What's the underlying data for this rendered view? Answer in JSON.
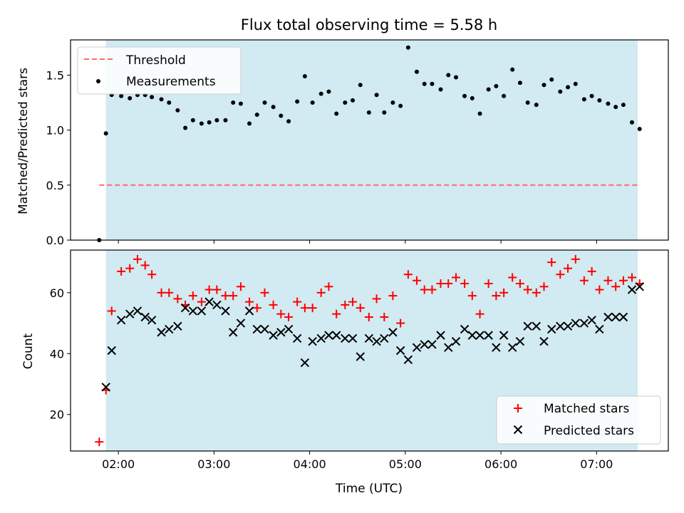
{
  "title": "Flux total observing time = 5.58 h",
  "colors": {
    "shade": "#add8e6",
    "threshold": "#ff6b6b",
    "measurements": "#000000",
    "matched": "#ff0000",
    "predicted": "#000000"
  },
  "chart_data": [
    {
      "type": "scatter",
      "ylabel": "Matched/Predicted stars",
      "xlim": [
        1.5,
        7.75
      ],
      "ylim": [
        0,
        1.82
      ],
      "yticks": [
        "0.0",
        "0.5",
        "1.0",
        "1.5"
      ],
      "shaded_span": [
        1.87,
        7.43
      ],
      "legend_position": "upper left",
      "threshold": {
        "name": "Threshold",
        "y": 0.5,
        "x": [
          1.8,
          7.43
        ]
      },
      "measurements": {
        "name": "Measurements",
        "x": [
          1.8,
          1.87,
          1.93,
          2.03,
          2.12,
          2.2,
          2.28,
          2.35,
          2.45,
          2.53,
          2.62,
          2.7,
          2.78,
          2.87,
          2.95,
          3.03,
          3.12,
          3.2,
          3.28,
          3.37,
          3.45,
          3.53,
          3.62,
          3.7,
          3.78,
          3.87,
          3.95,
          4.03,
          4.12,
          4.2,
          4.28,
          4.37,
          4.45,
          4.53,
          4.62,
          4.7,
          4.78,
          4.87,
          4.95,
          5.03,
          5.12,
          5.2,
          5.28,
          5.37,
          5.45,
          5.53,
          5.62,
          5.7,
          5.78,
          5.87,
          5.95,
          6.03,
          6.12,
          6.2,
          6.28,
          6.37,
          6.45,
          6.53,
          6.62,
          6.7,
          6.78,
          6.87,
          6.95,
          7.03,
          7.12,
          7.2,
          7.28,
          7.37,
          7.45
        ],
        "y": [
          0.0,
          0.97,
          1.32,
          1.31,
          1.29,
          1.32,
          1.32,
          1.3,
          1.28,
          1.25,
          1.18,
          1.02,
          1.09,
          1.06,
          1.07,
          1.09,
          1.09,
          1.25,
          1.24,
          1.06,
          1.14,
          1.25,
          1.21,
          1.13,
          1.08,
          1.26,
          1.49,
          1.25,
          1.33,
          1.35,
          1.15,
          1.25,
          1.27,
          1.41,
          1.16,
          1.32,
          1.16,
          1.25,
          1.22,
          1.75,
          1.53,
          1.42,
          1.42,
          1.37,
          1.5,
          1.48,
          1.31,
          1.29,
          1.15,
          1.37,
          1.4,
          1.31,
          1.55,
          1.43,
          1.25,
          1.23,
          1.41,
          1.46,
          1.35,
          1.39,
          1.42,
          1.28,
          1.31,
          1.27,
          1.24,
          1.21,
          1.23,
          1.07,
          1.01
        ]
      }
    },
    {
      "type": "scatter",
      "xlabel": "Time (UTC)",
      "ylabel": "Count",
      "xlim": [
        1.5,
        7.75
      ],
      "ylim": [
        8,
        74
      ],
      "xticks": [
        "02:00",
        "03:00",
        "04:00",
        "05:00",
        "06:00",
        "07:00"
      ],
      "yticks": [
        "20",
        "40",
        "60"
      ],
      "shaded_span": [
        1.87,
        7.43
      ],
      "legend_position": "lower right",
      "series": [
        {
          "name": "Matched stars",
          "marker": "plus",
          "x": [
            1.8,
            1.87,
            1.93,
            2.03,
            2.12,
            2.2,
            2.28,
            2.35,
            2.45,
            2.53,
            2.62,
            2.7,
            2.78,
            2.87,
            2.95,
            3.03,
            3.12,
            3.2,
            3.28,
            3.37,
            3.45,
            3.53,
            3.62,
            3.7,
            3.78,
            3.87,
            3.95,
            4.03,
            4.12,
            4.2,
            4.28,
            4.37,
            4.45,
            4.53,
            4.62,
            4.7,
            4.78,
            4.87,
            4.95,
            5.03,
            5.12,
            5.2,
            5.28,
            5.37,
            5.45,
            5.53,
            5.62,
            5.7,
            5.78,
            5.87,
            5.95,
            6.03,
            6.12,
            6.2,
            6.28,
            6.37,
            6.45,
            6.53,
            6.62,
            6.7,
            6.78,
            6.87,
            6.95,
            7.03,
            7.12,
            7.2,
            7.28,
            7.37,
            7.45
          ],
          "y": [
            11,
            28,
            54,
            67,
            68,
            71,
            69,
            66,
            60,
            60,
            58,
            56,
            59,
            57,
            61,
            61,
            59,
            59,
            62,
            57,
            55,
            60,
            56,
            53,
            52,
            57,
            55,
            55,
            60,
            62,
            53,
            56,
            57,
            55,
            52,
            58,
            52,
            59,
            50,
            66,
            64,
            61,
            61,
            63,
            63,
            65,
            63,
            59,
            53,
            63,
            59,
            60,
            65,
            63,
            61,
            60,
            62,
            70,
            66,
            68,
            71,
            64,
            67,
            61,
            64,
            62,
            64,
            65,
            63
          ]
        },
        {
          "name": "Predicted stars",
          "marker": "x",
          "x": [
            1.87,
            1.93,
            2.03,
            2.12,
            2.2,
            2.28,
            2.35,
            2.45,
            2.53,
            2.62,
            2.7,
            2.78,
            2.87,
            2.95,
            3.03,
            3.12,
            3.2,
            3.28,
            3.37,
            3.45,
            3.53,
            3.62,
            3.7,
            3.78,
            3.87,
            3.95,
            4.03,
            4.12,
            4.2,
            4.28,
            4.37,
            4.45,
            4.53,
            4.62,
            4.7,
            4.78,
            4.87,
            4.95,
            5.03,
            5.12,
            5.2,
            5.28,
            5.37,
            5.45,
            5.53,
            5.62,
            5.7,
            5.78,
            5.87,
            5.95,
            6.03,
            6.12,
            6.2,
            6.28,
            6.37,
            6.45,
            6.53,
            6.62,
            6.7,
            6.78,
            6.87,
            6.95,
            7.03,
            7.12,
            7.2,
            7.28,
            7.37,
            7.45
          ],
          "y": [
            29,
            41,
            51,
            53,
            54,
            52,
            51,
            47,
            48,
            49,
            55,
            54,
            54,
            57,
            56,
            54,
            47,
            50,
            54,
            48,
            48,
            46,
            47,
            48,
            45,
            37,
            44,
            45,
            46,
            46,
            45,
            45,
            39,
            45,
            44,
            45,
            47,
            41,
            38,
            42,
            43,
            43,
            46,
            42,
            44,
            48,
            46,
            46,
            46,
            42,
            46,
            42,
            44,
            49,
            49,
            44,
            48,
            49,
            49,
            50,
            50,
            51,
            48,
            52,
            52,
            52,
            61,
            62
          ]
        }
      ]
    }
  ]
}
